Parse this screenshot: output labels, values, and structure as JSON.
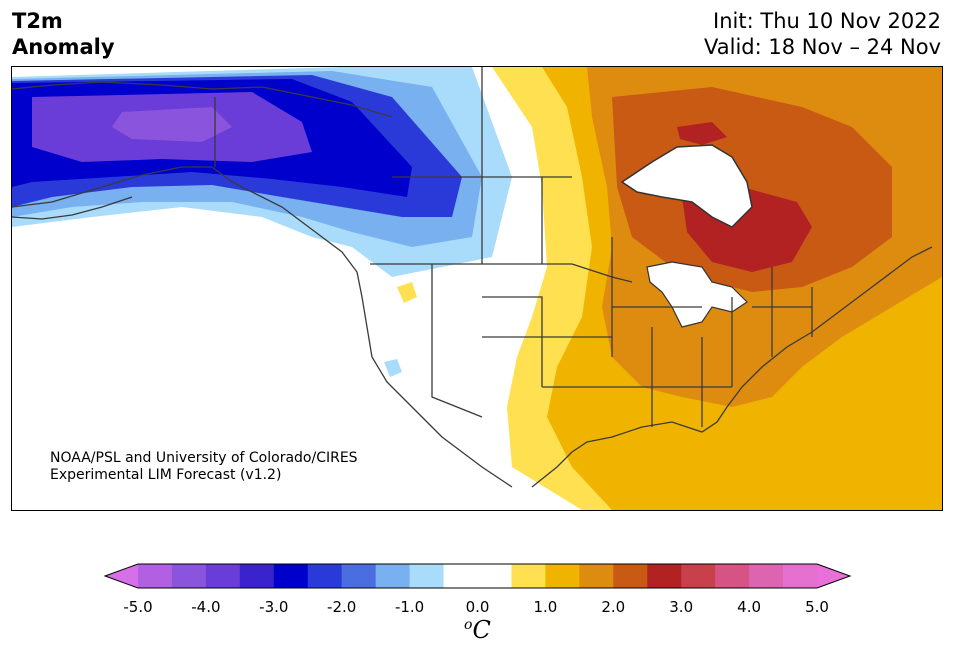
{
  "title": {
    "line1": "T2m",
    "line2": "Anomaly"
  },
  "init": {
    "line1": "Init: Thu 10 Nov 2022",
    "line2": "Valid: 18 Nov – 24 Nov"
  },
  "credit": {
    "line1": "NOAA/PSL and University of Colorado/CIRES",
    "line2": "Experimental LIM Forecast (v1.2)"
  },
  "colorbar": {
    "ticks": [
      "-5.0",
      "-4.0",
      "-3.0",
      "-2.0",
      "-1.0",
      "0.0",
      "1.0",
      "2.0",
      "3.0",
      "4.0",
      "5.0"
    ],
    "unit_base": "C",
    "unit_sup": "o",
    "under_color": "#d670e8",
    "over_color": "#e870d8",
    "bins": [
      "#b060e0",
      "#8a55dc",
      "#6a3dd8",
      "#3a22cc",
      "#0000cc",
      "#2a3ad8",
      "#4a6ee0",
      "#78b0f0",
      "#a8dcfa",
      "#ffffff",
      "#ffffff",
      "#ffe050",
      "#f0b400",
      "#de8c10",
      "#c85a14",
      "#b22222",
      "#c8404c",
      "#d65484",
      "#dc64b0",
      "#e670d0"
    ]
  },
  "legend_colors": {
    "cold_extreme": "#8a55dc",
    "cold": "#0000cc",
    "cool": "#78b0f0",
    "neutral": "#ffffff",
    "warm": "#ffe050",
    "warmer": "#f0b400",
    "hot": "#de8c10",
    "hotter": "#c85a14",
    "hottest": "#b22222"
  }
}
